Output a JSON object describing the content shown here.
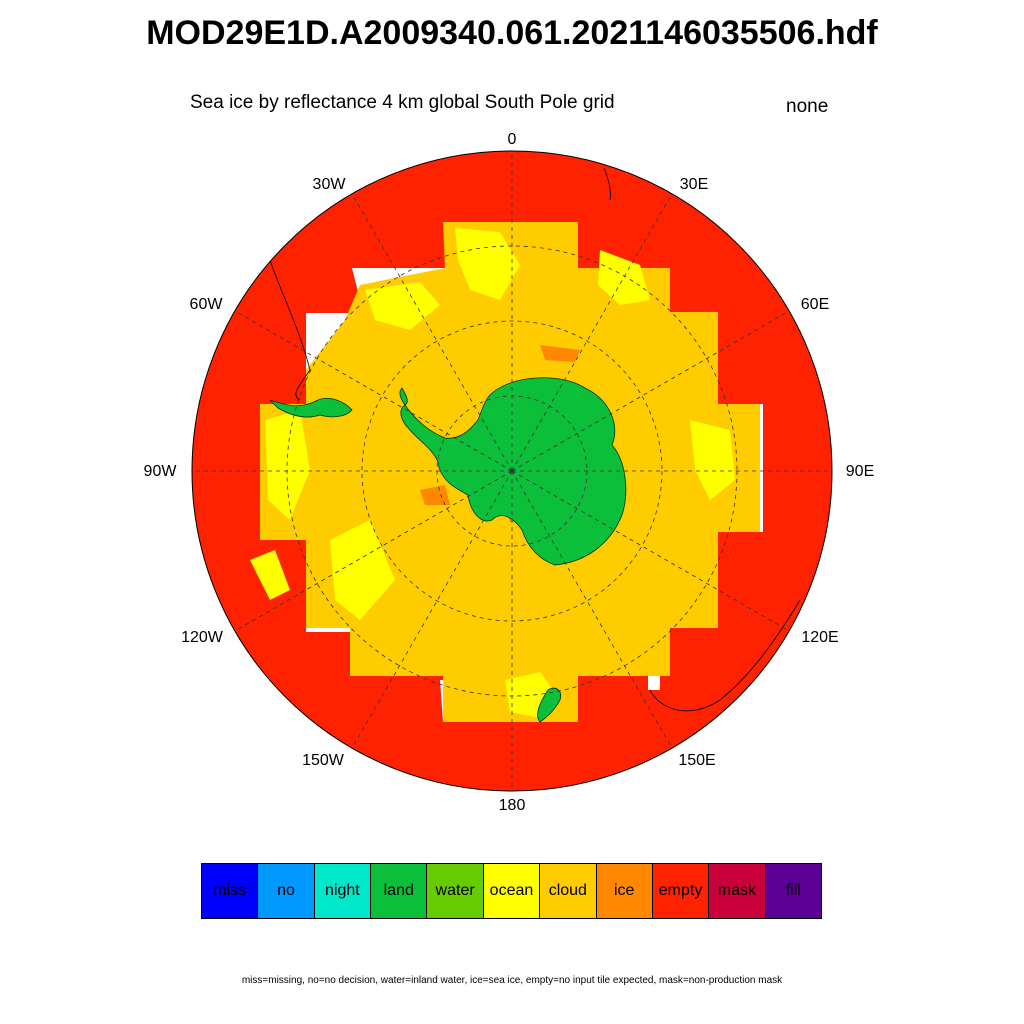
{
  "title": "MOD29E1D.A2009340.061.2021146035506.hdf",
  "subtitle": "Sea ice by reflectance 4 km global South Pole grid",
  "units": "none",
  "longitude_labels": {
    "lon0": "0",
    "lon30e": "30E",
    "lon60e": "60E",
    "lon90e": "90E",
    "lon120e": "120E",
    "lon150e": "150E",
    "lon180": "180",
    "lon150w": "150W",
    "lon120w": "120W",
    "lon90w": "90W",
    "lon60w": "60W",
    "lon30w": "30W"
  },
  "map_colors": {
    "empty": "#ff2200",
    "cloud": "#ffcc00",
    "ocean": "#ffff00",
    "land": "#0bbf3a",
    "ice": "#ff8800",
    "nodata": "#ffffff"
  },
  "legend": [
    {
      "label": "miss",
      "color": "#0000ff"
    },
    {
      "label": "no",
      "color": "#0099ff"
    },
    {
      "label": "night",
      "color": "#00e8cc"
    },
    {
      "label": "land",
      "color": "#0bbf3a"
    },
    {
      "label": "water",
      "color": "#66cc00"
    },
    {
      "label": "ocean",
      "color": "#ffff00"
    },
    {
      "label": "cloud",
      "color": "#ffcc00"
    },
    {
      "label": "ice",
      "color": "#ff8800"
    },
    {
      "label": "empty",
      "color": "#ff2200"
    },
    {
      "label": "mask",
      "color": "#c8003c"
    },
    {
      "label": "fill",
      "color": "#5a0096"
    }
  ],
  "footnote": "miss=missing, no=no decision, water=inland water, ice=sea ice, empty=no input tile expected, mask=non-production mask"
}
